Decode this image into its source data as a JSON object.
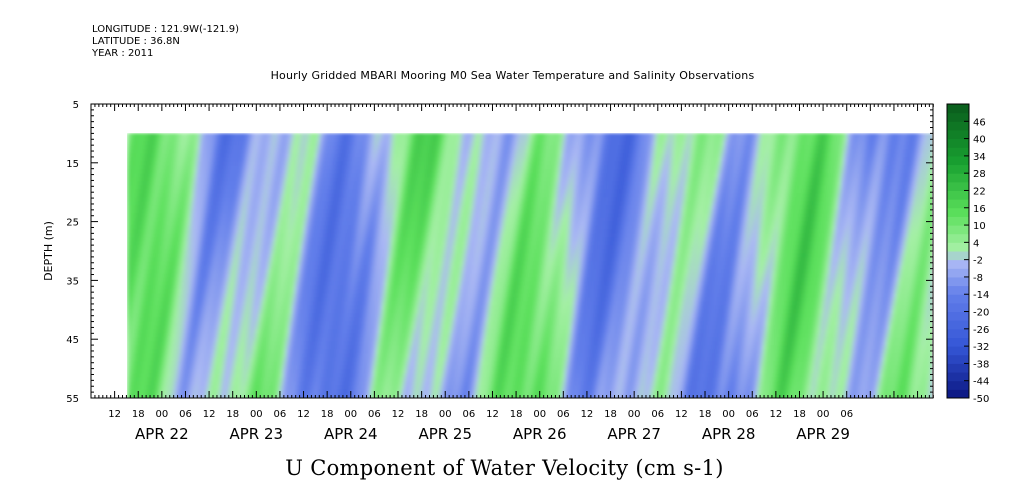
{
  "header": {
    "longitude": "LONGITUDE : 121.9W(-121.9)",
    "latitude": "LATITUDE : 36.8N",
    "year": "YEAR : 2011",
    "title": "Hourly Gridded MBARI Mooring M0 Sea Water Temperature and Salinity Observations"
  },
  "chart_data": {
    "type": "heatmap",
    "title": "Hourly Gridded MBARI Mooring M0 Sea Water Temperature and Salinity Observations",
    "plot_title": "U Component of Water Velocity (cm s-1)",
    "ylabel": "DEPTH (m)",
    "ylim": [
      5,
      55
    ],
    "y_inverted": true,
    "y_ticks": [
      "5",
      "15",
      "25",
      "35",
      "45",
      "55"
    ],
    "data_depth_range": [
      10,
      55
    ],
    "x_hour_labels": [
      "12",
      "18",
      "00",
      "06",
      "12",
      "18",
      "00",
      "06",
      "12",
      "18",
      "00",
      "06",
      "12",
      "18",
      "00",
      "06",
      "12",
      "18",
      "00",
      "06",
      "12",
      "18",
      "00",
      "06",
      "12",
      "18",
      "00",
      "06",
      "12",
      "18",
      "00",
      "06"
    ],
    "x_date_labels": [
      "APR 22",
      "APR 23",
      "APR 24",
      "APR 25",
      "APR 26",
      "APR 27",
      "APR 28",
      "APR 29"
    ],
    "colorbar_labels": [
      "46",
      "40",
      "34",
      "28",
      "22",
      "16",
      "10",
      "4",
      "-2",
      "-8",
      "-14",
      "-20",
      "-26",
      "-32",
      "-38",
      "-44",
      "-50"
    ],
    "colorbar_range": [
      -50,
      52
    ],
    "colors": {
      "strong_negative": "#0a1680",
      "mid_negative": "#5a78e6",
      "weak_negative": "#a2b2f2",
      "weak_positive": "#a6f2a6",
      "mid_positive": "#5ae05a",
      "strong_positive": "#0a5c1c"
    }
  }
}
